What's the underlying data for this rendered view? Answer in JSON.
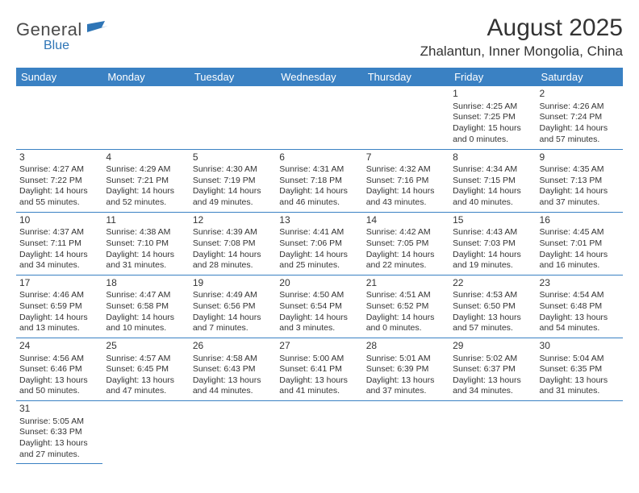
{
  "logo": {
    "text1": "General",
    "text2": "Blue"
  },
  "title": "August 2025",
  "location": "Zhalantun, Inner Mongolia, China",
  "colors": {
    "header_bg": "#3a81c3",
    "header_text": "#ffffff",
    "cell_border": "#3a81c3",
    "logo_blue": "#2e75b6",
    "text": "#333333"
  },
  "day_headers": [
    "Sunday",
    "Monday",
    "Tuesday",
    "Wednesday",
    "Thursday",
    "Friday",
    "Saturday"
  ],
  "first_weekday_index": 5,
  "days": [
    {
      "n": 1,
      "sunrise": "4:25 AM",
      "sunset": "7:25 PM",
      "daylight": "15 hours and 0 minutes."
    },
    {
      "n": 2,
      "sunrise": "4:26 AM",
      "sunset": "7:24 PM",
      "daylight": "14 hours and 57 minutes."
    },
    {
      "n": 3,
      "sunrise": "4:27 AM",
      "sunset": "7:22 PM",
      "daylight": "14 hours and 55 minutes."
    },
    {
      "n": 4,
      "sunrise": "4:29 AM",
      "sunset": "7:21 PM",
      "daylight": "14 hours and 52 minutes."
    },
    {
      "n": 5,
      "sunrise": "4:30 AM",
      "sunset": "7:19 PM",
      "daylight": "14 hours and 49 minutes."
    },
    {
      "n": 6,
      "sunrise": "4:31 AM",
      "sunset": "7:18 PM",
      "daylight": "14 hours and 46 minutes."
    },
    {
      "n": 7,
      "sunrise": "4:32 AM",
      "sunset": "7:16 PM",
      "daylight": "14 hours and 43 minutes."
    },
    {
      "n": 8,
      "sunrise": "4:34 AM",
      "sunset": "7:15 PM",
      "daylight": "14 hours and 40 minutes."
    },
    {
      "n": 9,
      "sunrise": "4:35 AM",
      "sunset": "7:13 PM",
      "daylight": "14 hours and 37 minutes."
    },
    {
      "n": 10,
      "sunrise": "4:37 AM",
      "sunset": "7:11 PM",
      "daylight": "14 hours and 34 minutes."
    },
    {
      "n": 11,
      "sunrise": "4:38 AM",
      "sunset": "7:10 PM",
      "daylight": "14 hours and 31 minutes."
    },
    {
      "n": 12,
      "sunrise": "4:39 AM",
      "sunset": "7:08 PM",
      "daylight": "14 hours and 28 minutes."
    },
    {
      "n": 13,
      "sunrise": "4:41 AM",
      "sunset": "7:06 PM",
      "daylight": "14 hours and 25 minutes."
    },
    {
      "n": 14,
      "sunrise": "4:42 AM",
      "sunset": "7:05 PM",
      "daylight": "14 hours and 22 minutes."
    },
    {
      "n": 15,
      "sunrise": "4:43 AM",
      "sunset": "7:03 PM",
      "daylight": "14 hours and 19 minutes."
    },
    {
      "n": 16,
      "sunrise": "4:45 AM",
      "sunset": "7:01 PM",
      "daylight": "14 hours and 16 minutes."
    },
    {
      "n": 17,
      "sunrise": "4:46 AM",
      "sunset": "6:59 PM",
      "daylight": "14 hours and 13 minutes."
    },
    {
      "n": 18,
      "sunrise": "4:47 AM",
      "sunset": "6:58 PM",
      "daylight": "14 hours and 10 minutes."
    },
    {
      "n": 19,
      "sunrise": "4:49 AM",
      "sunset": "6:56 PM",
      "daylight": "14 hours and 7 minutes."
    },
    {
      "n": 20,
      "sunrise": "4:50 AM",
      "sunset": "6:54 PM",
      "daylight": "14 hours and 3 minutes."
    },
    {
      "n": 21,
      "sunrise": "4:51 AM",
      "sunset": "6:52 PM",
      "daylight": "14 hours and 0 minutes."
    },
    {
      "n": 22,
      "sunrise": "4:53 AM",
      "sunset": "6:50 PM",
      "daylight": "13 hours and 57 minutes."
    },
    {
      "n": 23,
      "sunrise": "4:54 AM",
      "sunset": "6:48 PM",
      "daylight": "13 hours and 54 minutes."
    },
    {
      "n": 24,
      "sunrise": "4:56 AM",
      "sunset": "6:46 PM",
      "daylight": "13 hours and 50 minutes."
    },
    {
      "n": 25,
      "sunrise": "4:57 AM",
      "sunset": "6:45 PM",
      "daylight": "13 hours and 47 minutes."
    },
    {
      "n": 26,
      "sunrise": "4:58 AM",
      "sunset": "6:43 PM",
      "daylight": "13 hours and 44 minutes."
    },
    {
      "n": 27,
      "sunrise": "5:00 AM",
      "sunset": "6:41 PM",
      "daylight": "13 hours and 41 minutes."
    },
    {
      "n": 28,
      "sunrise": "5:01 AM",
      "sunset": "6:39 PM",
      "daylight": "13 hours and 37 minutes."
    },
    {
      "n": 29,
      "sunrise": "5:02 AM",
      "sunset": "6:37 PM",
      "daylight": "13 hours and 34 minutes."
    },
    {
      "n": 30,
      "sunrise": "5:04 AM",
      "sunset": "6:35 PM",
      "daylight": "13 hours and 31 minutes."
    },
    {
      "n": 31,
      "sunrise": "5:05 AM",
      "sunset": "6:33 PM",
      "daylight": "13 hours and 27 minutes."
    }
  ],
  "labels": {
    "sunrise": "Sunrise:",
    "sunset": "Sunset:",
    "daylight": "Daylight:"
  }
}
